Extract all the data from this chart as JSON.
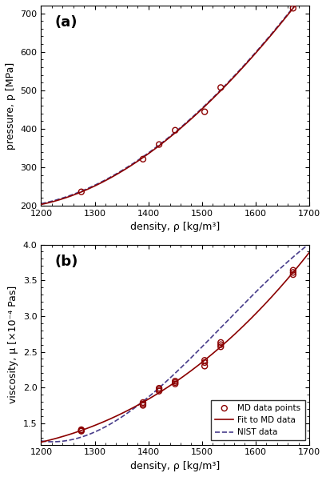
{
  "pressure_scatter_x": [
    1275,
    1390,
    1420,
    1450,
    1505,
    1535,
    1670
  ],
  "pressure_scatter_y": [
    236,
    321,
    359,
    396,
    444,
    507,
    713
  ],
  "pressure_xlim": [
    1200,
    1700
  ],
  "pressure_ylim": [
    200,
    720
  ],
  "pressure_yticks": [
    200,
    300,
    400,
    500,
    600,
    700
  ],
  "pressure_xlabel": "density, ρ [kg/m³]",
  "pressure_ylabel": "pressure, p [MPa]",
  "visc_scatter_x": [
    1275,
    1275,
    1275,
    1390,
    1390,
    1390,
    1420,
    1420,
    1420,
    1450,
    1450,
    1450,
    1505,
    1505,
    1505,
    1535,
    1535,
    1535,
    1670,
    1670,
    1670
  ],
  "visc_scatter_y": [
    1.39,
    1.4,
    1.41,
    1.75,
    1.77,
    1.79,
    1.95,
    1.97,
    1.99,
    2.05,
    2.07,
    2.09,
    2.3,
    2.35,
    2.38,
    2.57,
    2.6,
    2.63,
    3.58,
    3.61,
    3.64
  ],
  "visc_fit_mean_x": [
    1275,
    1390,
    1420,
    1450,
    1505,
    1535,
    1670
  ],
  "visc_fit_mean_y": [
    1.4,
    1.77,
    1.97,
    2.07,
    2.34,
    2.6,
    3.61
  ],
  "visc_nist_x": [
    1200,
    1275,
    1390,
    1420,
    1450,
    1505,
    1535,
    1620,
    1670,
    1700
  ],
  "visc_nist_y": [
    1.22,
    1.38,
    1.78,
    1.97,
    2.17,
    2.6,
    2.88,
    3.5,
    3.82,
    4.0
  ],
  "visc_xlim": [
    1200,
    1700
  ],
  "visc_ylim": [
    1.2,
    4.0
  ],
  "visc_yticks": [
    1.5,
    2.0,
    2.5,
    3.0,
    3.5,
    4.0
  ],
  "visc_xlabel": "density, ρ [kg/m³]",
  "visc_ylabel": "viscosity, μ [×10⁻⁴ Pas]",
  "color_md": "#8B0000",
  "color_nist": "#483D8B",
  "legend_labels": [
    "MD data points",
    "Fit to MD data",
    "NIST data"
  ],
  "panel_a_label": "(a)",
  "panel_b_label": "(b)"
}
